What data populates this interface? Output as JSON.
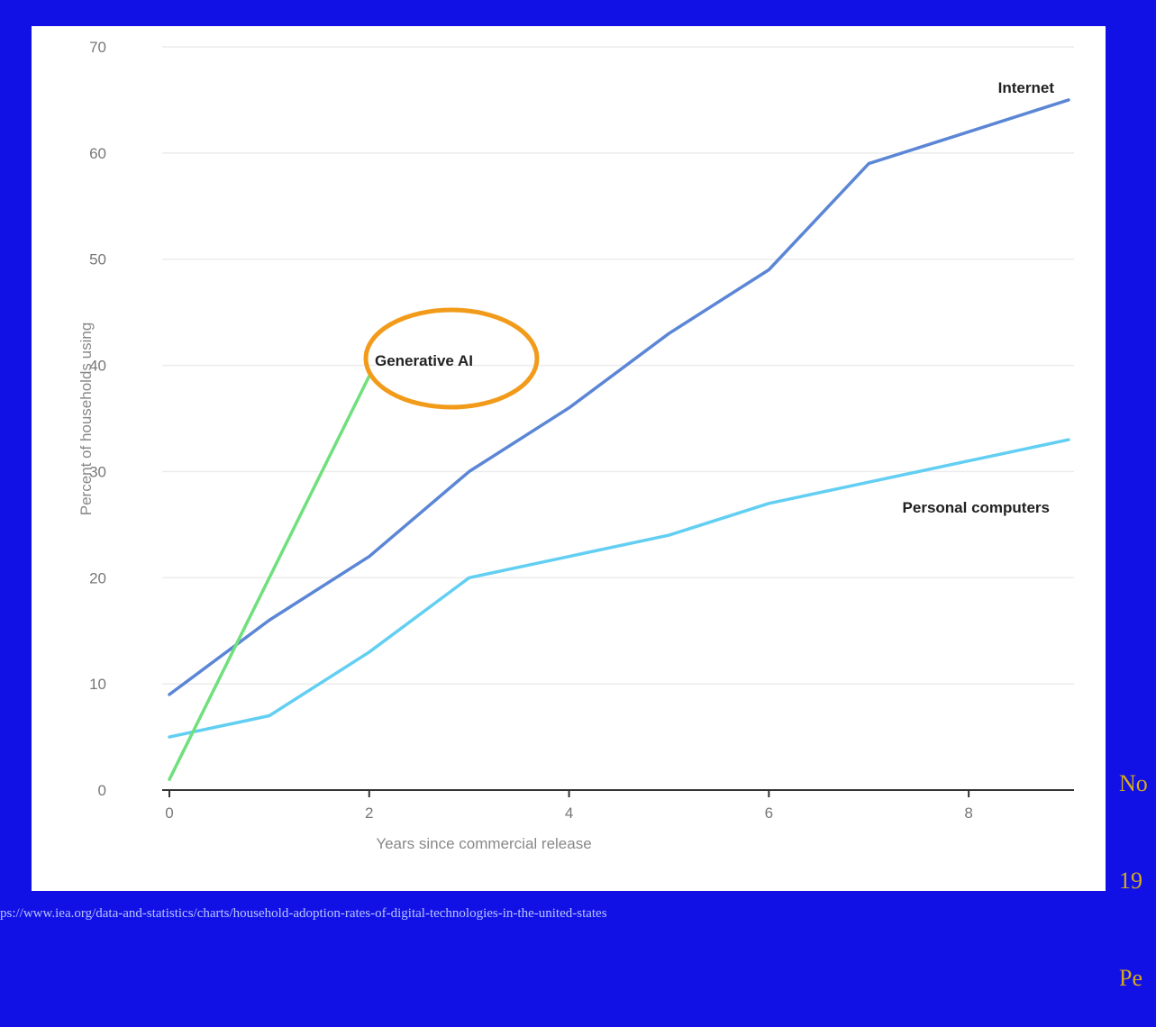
{
  "colors": {
    "background": "#1111e6",
    "panel": "#ffffff",
    "highlight_circle": "#f29b1a",
    "side_note_text": "#d4aa1c",
    "source_text": "#b8c4ff"
  },
  "chart_data": {
    "type": "line",
    "title": "",
    "xlabel": "Years since commercial release",
    "ylabel": "Percent of households using",
    "xlim": [
      0,
      9
    ],
    "ylim": [
      0,
      70
    ],
    "x_ticks": [
      0,
      2,
      4,
      6,
      8
    ],
    "y_ticks": [
      0,
      10,
      20,
      30,
      40,
      50,
      60,
      70
    ],
    "grid": "horizontal",
    "legend": "none (labels placed next to lines)",
    "series": [
      {
        "name": "Internet",
        "color": "#5b86d6",
        "x": [
          0,
          1,
          2,
          3,
          4,
          5,
          6,
          7,
          8,
          9
        ],
        "y": [
          9,
          16,
          22,
          30,
          36,
          43,
          49,
          59,
          62,
          65
        ]
      },
      {
        "name": "Personal computers",
        "color": "#62cff2",
        "x": [
          0,
          1,
          2,
          3,
          4,
          5,
          6,
          7,
          8,
          9
        ],
        "y": [
          5,
          7,
          13,
          20,
          22,
          24,
          27,
          29,
          31,
          33
        ]
      },
      {
        "name": "Generative AI",
        "color": "#6fe07d",
        "x": [
          0,
          2
        ],
        "y": [
          1,
          39
        ]
      }
    ],
    "annotations": [
      {
        "text": "Generative AI",
        "series": "Generative AI",
        "highlighted": true
      }
    ]
  },
  "side_note": {
    "lines": [
      "No",
      "19",
      "Pe"
    ]
  },
  "source": {
    "url_text": "ps://www.iea.org/data-and-statistics/charts/household-adoption-rates-of-digital-technologies-in-the-united-states"
  }
}
